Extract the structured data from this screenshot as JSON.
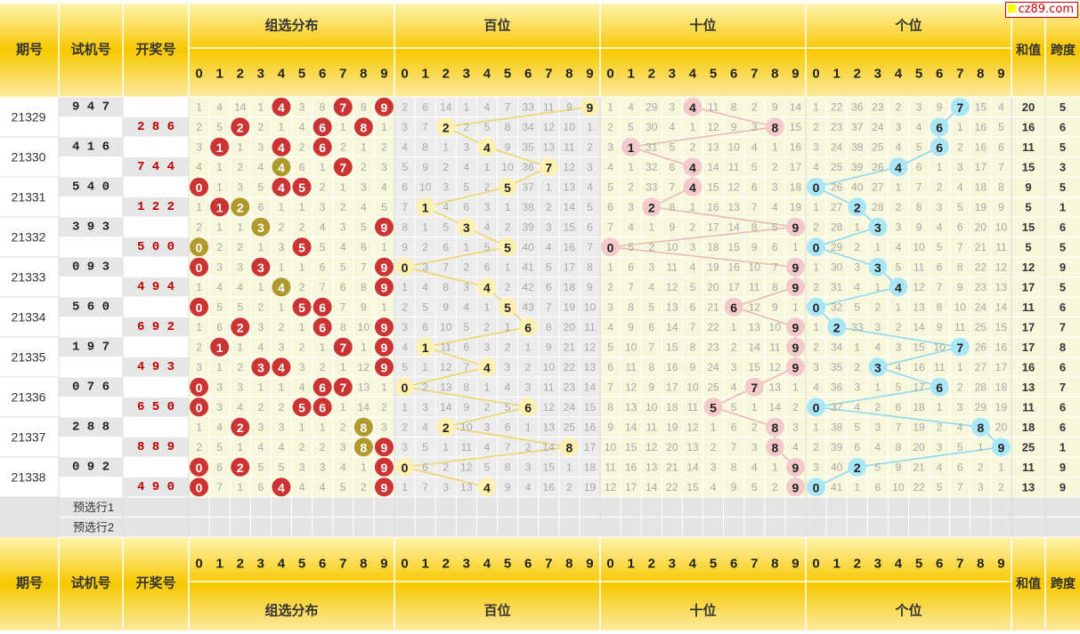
{
  "watermark": "cz89.com",
  "header": {
    "period": "期号",
    "trial": "试机号",
    "draw": "开奖号",
    "group_label": "组选分布",
    "hundreds_label": "百位",
    "tens_label": "十位",
    "units_label": "个位",
    "sum_label": "和值",
    "span_label": "跨度",
    "digits": [
      "0",
      "1",
      "2",
      "3",
      "4",
      "5",
      "6",
      "7",
      "8",
      "9"
    ]
  },
  "colors": {
    "header_gold": "#f7c800",
    "group_hit": "#cc3333",
    "group_pair": "#b19a2d",
    "hundreds_ball": "#fdf0b0",
    "tens_ball": "#f3c9c9",
    "units_ball": "#a9e6f6",
    "miss_text": "#a8a8a8"
  },
  "periods": [
    {
      "id": "21329",
      "trial": "9 4 7",
      "draw": "2 8 6"
    },
    {
      "id": "21330",
      "trial": "4 1 6",
      "draw": "7 4 4"
    },
    {
      "id": "21331",
      "trial": "5 4 0",
      "draw": "1 2 2"
    },
    {
      "id": "21332",
      "trial": "3 9 3",
      "draw": "5 0 0"
    },
    {
      "id": "21333",
      "trial": "0 9 3",
      "draw": "4 9 4"
    },
    {
      "id": "21334",
      "trial": "5 6 0",
      "draw": "6 9 2"
    },
    {
      "id": "21335",
      "trial": "1 9 7",
      "draw": "4 9 3"
    },
    {
      "id": "21336",
      "trial": "0 7 6",
      "draw": "6 5 0"
    },
    {
      "id": "21337",
      "trial": "2 8 8",
      "draw": "8 8 9"
    },
    {
      "id": "21338",
      "trial": "0 9 2",
      "draw": "4 9 0"
    }
  ],
  "preselect": [
    "预选行1",
    "预选行2"
  ],
  "rows": [
    {
      "group": [
        1,
        4,
        14,
        1,
        "4",
        3,
        8,
        "7",
        8,
        "9"
      ],
      "bai": [
        2,
        6,
        14,
        1,
        4,
        7,
        33,
        11,
        9,
        "9"
      ],
      "shi": [
        1,
        4,
        29,
        3,
        "4",
        11,
        8,
        2,
        9,
        14
      ],
      "ge": [
        1,
        22,
        36,
        23,
        2,
        3,
        9,
        "7",
        15,
        4
      ],
      "sum": "20",
      "span": "5"
    },
    {
      "group": [
        2,
        5,
        "2",
        2,
        1,
        4,
        "6",
        1,
        "8",
        1
      ],
      "bai": [
        3,
        7,
        "2",
        2,
        5,
        8,
        34,
        12,
        10,
        1
      ],
      "shi": [
        2,
        5,
        30,
        4,
        1,
        12,
        9,
        3,
        "8",
        15
      ],
      "ge": [
        2,
        23,
        37,
        24,
        3,
        4,
        "6",
        1,
        16,
        5
      ],
      "sum": "16",
      "span": "6"
    },
    {
      "group": [
        3,
        "1",
        1,
        3,
        "4",
        2,
        "6",
        2,
        1,
        2
      ],
      "bai": [
        4,
        8,
        1,
        3,
        "4",
        9,
        35,
        13,
        11,
        2
      ],
      "shi": [
        3,
        "1",
        31,
        5,
        2,
        13,
        10,
        4,
        1,
        16
      ],
      "ge": [
        3,
        24,
        38,
        25,
        4,
        5,
        "6",
        2,
        16,
        6
      ],
      "sum": "11",
      "span": "5"
    },
    {
      "group": [
        4,
        1,
        2,
        4,
        "4",
        6,
        1,
        "7",
        2,
        3
      ],
      "bai": [
        5,
        9,
        2,
        4,
        1,
        10,
        36,
        "7",
        12,
        3
      ],
      "shi": [
        4,
        1,
        32,
        6,
        "4",
        14,
        11,
        5,
        2,
        17
      ],
      "ge": [
        4,
        25,
        39,
        26,
        "4",
        6,
        1,
        3,
        17,
        7
      ],
      "sum": "15",
      "span": "3"
    },
    {
      "group": [
        "0",
        1,
        3,
        5,
        "4",
        "5",
        2,
        1,
        3,
        4
      ],
      "bai": [
        6,
        10,
        3,
        5,
        2,
        "5",
        37,
        1,
        13,
        4
      ],
      "shi": [
        5,
        2,
        33,
        7,
        "4",
        15,
        12,
        6,
        3,
        18
      ],
      "ge": [
        "0",
        26,
        40,
        27,
        1,
        7,
        2,
        4,
        18,
        8
      ],
      "sum": "9",
      "span": "5"
    },
    {
      "group": [
        1,
        "1",
        "2",
        6,
        1,
        1,
        3,
        2,
        4,
        5
      ],
      "bai": [
        7,
        "1",
        4,
        6,
        3,
        1,
        38,
        2,
        14,
        5
      ],
      "shi": [
        6,
        3,
        "2",
        8,
        1,
        16,
        13,
        7,
        4,
        19
      ],
      "ge": [
        1,
        27,
        "2",
        28,
        2,
        8,
        3,
        5,
        19,
        9
      ],
      "sum": "5",
      "span": "1"
    },
    {
      "group": [
        2,
        1,
        1,
        "3",
        2,
        2,
        4,
        3,
        5,
        "9"
      ],
      "bai": [
        8,
        1,
        5,
        "3",
        4,
        2,
        39,
        3,
        15,
        6
      ],
      "shi": [
        7,
        4,
        1,
        9,
        2,
        17,
        14,
        8,
        5,
        "9"
      ],
      "ge": [
        2,
        28,
        1,
        "3",
        3,
        9,
        4,
        6,
        20,
        10
      ],
      "sum": "15",
      "span": "6"
    },
    {
      "group": [
        "0",
        2,
        2,
        1,
        3,
        "5",
        5,
        4,
        6,
        1
      ],
      "bai": [
        9,
        2,
        6,
        1,
        5,
        "5",
        40,
        4,
        16,
        7
      ],
      "shi": [
        "0",
        5,
        2,
        10,
        3,
        18,
        15,
        9,
        6,
        1
      ],
      "ge": [
        "0",
        29,
        2,
        1,
        4,
        10,
        5,
        7,
        21,
        11
      ],
      "sum": "5",
      "span": "5"
    },
    {
      "group": [
        "0",
        3,
        3,
        "3",
        1,
        1,
        6,
        5,
        7,
        "9"
      ],
      "bai": [
        "0",
        3,
        7,
        2,
        6,
        1,
        41,
        5,
        17,
        8
      ],
      "shi": [
        1,
        6,
        3,
        11,
        4,
        19,
        16,
        10,
        7,
        "9"
      ],
      "ge": [
        1,
        30,
        3,
        "3",
        5,
        11,
        6,
        8,
        22,
        12
      ],
      "sum": "12",
      "span": "9"
    },
    {
      "group": [
        1,
        4,
        4,
        1,
        "4",
        2,
        7,
        6,
        8,
        "9"
      ],
      "bai": [
        1,
        4,
        8,
        3,
        "4",
        2,
        42,
        6,
        18,
        9
      ],
      "shi": [
        2,
        7,
        4,
        12,
        5,
        20,
        17,
        11,
        8,
        "9"
      ],
      "ge": [
        2,
        31,
        4,
        1,
        "4",
        12,
        7,
        9,
        23,
        13
      ],
      "sum": "17",
      "span": "5"
    },
    {
      "group": [
        "0",
        5,
        5,
        2,
        1,
        "5",
        "6",
        7,
        9,
        1
      ],
      "bai": [
        2,
        5,
        9,
        4,
        1,
        "5",
        43,
        7,
        19,
        10
      ],
      "shi": [
        3,
        8,
        5,
        13,
        6,
        21,
        "6",
        12,
        9,
        1
      ],
      "ge": [
        "0",
        32,
        5,
        2,
        1,
        13,
        8,
        10,
        24,
        14
      ],
      "sum": "11",
      "span": "6"
    },
    {
      "group": [
        1,
        6,
        "2",
        3,
        2,
        1,
        "6",
        8,
        10,
        "9"
      ],
      "bai": [
        3,
        6,
        10,
        5,
        2,
        1,
        "6",
        8,
        20,
        11
      ],
      "shi": [
        4,
        9,
        6,
        14,
        7,
        22,
        1,
        13,
        10,
        "9"
      ],
      "ge": [
        1,
        "2",
        33,
        3,
        2,
        14,
        9,
        11,
        25,
        15
      ],
      "sum": "17",
      "span": "7"
    },
    {
      "group": [
        2,
        "1",
        1,
        4,
        3,
        2,
        1,
        "7",
        1,
        "9"
      ],
      "bai": [
        4,
        "1",
        11,
        6,
        3,
        2,
        1,
        9,
        21,
        12
      ],
      "shi": [
        5,
        10,
        7,
        15,
        8,
        23,
        2,
        14,
        11,
        "9"
      ],
      "ge": [
        2,
        34,
        1,
        4,
        3,
        15,
        10,
        "7",
        26,
        16
      ],
      "sum": "17",
      "span": "8"
    },
    {
      "group": [
        3,
        1,
        2,
        "3",
        "4",
        3,
        2,
        1,
        12,
        "9"
      ],
      "bai": [
        5,
        1,
        12,
        7,
        "4",
        3,
        2,
        10,
        22,
        13
      ],
      "shi": [
        6,
        11,
        8,
        16,
        9,
        24,
        3,
        15,
        12,
        "9"
      ],
      "ge": [
        3,
        35,
        2,
        "3",
        4,
        16,
        11,
        1,
        27,
        17
      ],
      "sum": "16",
      "span": "6"
    },
    {
      "group": [
        "0",
        3,
        3,
        1,
        1,
        4,
        "6",
        "7",
        13,
        1
      ],
      "bai": [
        "0",
        2,
        13,
        8,
        1,
        4,
        3,
        11,
        23,
        14
      ],
      "shi": [
        7,
        12,
        9,
        17,
        10,
        25,
        4,
        "7",
        13,
        1
      ],
      "ge": [
        4,
        36,
        3,
        1,
        5,
        17,
        "6",
        2,
        28,
        18
      ],
      "sum": "13",
      "span": "7"
    },
    {
      "group": [
        "0",
        3,
        4,
        2,
        2,
        "5",
        "6",
        1,
        14,
        2
      ],
      "bai": [
        1,
        3,
        14,
        9,
        2,
        5,
        "6",
        12,
        24,
        15
      ],
      "shi": [
        8,
        13,
        10,
        18,
        11,
        "5",
        5,
        1,
        14,
        2
      ],
      "ge": [
        "0",
        37,
        4,
        2,
        6,
        18,
        1,
        3,
        29,
        19
      ],
      "sum": "11",
      "span": "6"
    },
    {
      "group": [
        1,
        4,
        "2",
        3,
        3,
        1,
        1,
        2,
        "8",
        3
      ],
      "bai": [
        2,
        4,
        "2",
        10,
        3,
        6,
        1,
        13,
        25,
        16
      ],
      "shi": [
        9,
        14,
        11,
        19,
        12,
        1,
        6,
        2,
        "8",
        3
      ],
      "ge": [
        1,
        38,
        5,
        3,
        7,
        19,
        2,
        4,
        "8",
        20
      ],
      "sum": "18",
      "span": "6"
    },
    {
      "group": [
        2,
        5,
        1,
        4,
        4,
        2,
        2,
        3,
        "8",
        "9"
      ],
      "bai": [
        3,
        5,
        1,
        11,
        4,
        7,
        2,
        14,
        "8",
        17
      ],
      "shi": [
        10,
        15,
        12,
        20,
        13,
        2,
        7,
        3,
        "8",
        4
      ],
      "ge": [
        2,
        39,
        6,
        4,
        8,
        20,
        3,
        5,
        1,
        "9"
      ],
      "sum": "25",
      "span": "1"
    },
    {
      "group": [
        "0",
        6,
        "2",
        5,
        5,
        3,
        3,
        4,
        1,
        "9"
      ],
      "bai": [
        "0",
        6,
        2,
        12,
        5,
        8,
        3,
        15,
        1,
        18
      ],
      "shi": [
        11,
        16,
        13,
        21,
        14,
        3,
        8,
        4,
        1,
        "9"
      ],
      "ge": [
        3,
        40,
        "2",
        5,
        9,
        21,
        4,
        6,
        2,
        1
      ],
      "sum": "11",
      "span": "9"
    },
    {
      "group": [
        "0",
        7,
        1,
        6,
        "4",
        4,
        4,
        5,
        2,
        "9"
      ],
      "bai": [
        1,
        7,
        3,
        13,
        "4",
        9,
        4,
        16,
        2,
        19
      ],
      "shi": [
        12,
        17,
        14,
        22,
        15,
        4,
        9,
        5,
        2,
        "9"
      ],
      "ge": [
        "0",
        41,
        1,
        6,
        10,
        22,
        5,
        7,
        3,
        2
      ],
      "sum": "13",
      "span": "9"
    }
  ]
}
